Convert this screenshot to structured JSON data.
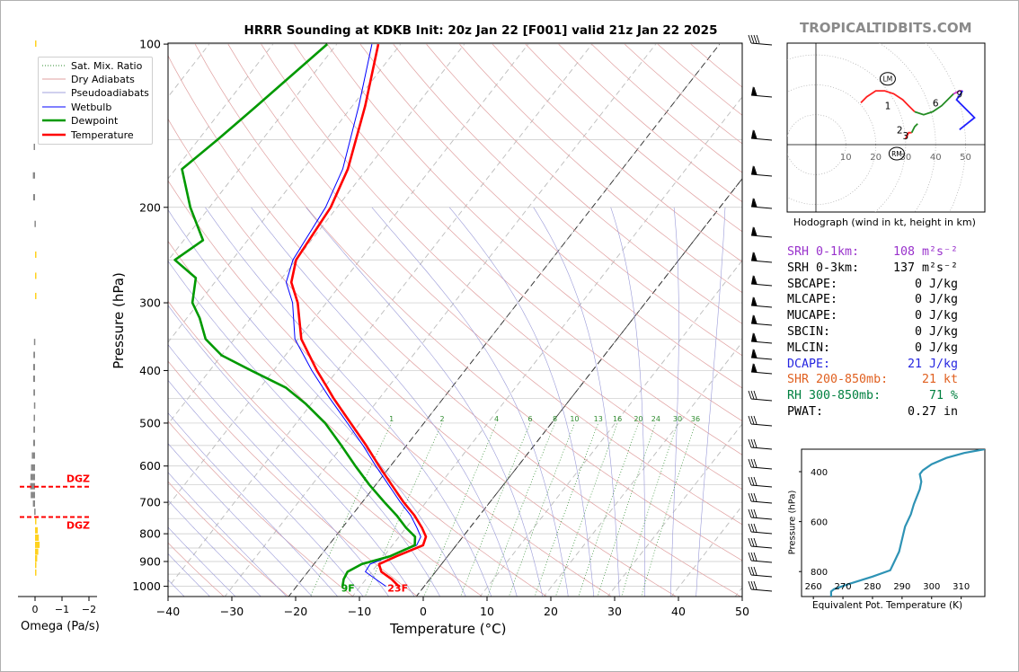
{
  "window": {
    "title": "HRRR Sounding at KDKB Init: 20z Jan 22 [F001] valid 21z Jan 22 2025",
    "brand": "TROPICALTIDBITS.COM"
  },
  "legend": {
    "items": [
      {
        "label": "Sat. Mix. Ratio",
        "color": "#2e8b2e",
        "style": "dotted"
      },
      {
        "label": "Dry Adiabats",
        "color": "#d98080",
        "style": "solid"
      },
      {
        "label": "Pseudoadiabats",
        "color": "#8080d0",
        "style": "solid"
      },
      {
        "label": "Wetbulb",
        "color": "#0000ff",
        "style": "solid"
      },
      {
        "label": "Dewpoint",
        "color": "#009900",
        "style": "solid"
      },
      {
        "label": "Temperature",
        "color": "#ff0000",
        "style": "solid"
      }
    ]
  },
  "skewt": {
    "ylabel": "Pressure (hPa)",
    "xlabel": "Temperature (°C)",
    "pressure_ticks": [
      "100",
      "200",
      "300",
      "400",
      "500",
      "600",
      "700",
      "800",
      "900",
      "1000"
    ],
    "temp_ticks": [
      "−40",
      "−30",
      "−20",
      "−10",
      "0",
      "10",
      "20",
      "30",
      "40",
      "50"
    ],
    "mixing_ratio_labels": [
      "1",
      "2",
      "4",
      "6",
      "8",
      "10",
      "13",
      "16",
      "20",
      "24",
      "30",
      "36"
    ],
    "surface_dewpoint_label": "9F",
    "surface_temp_label": "23F"
  },
  "omega": {
    "xlabel": "Omega (Pa/s)",
    "ticks": [
      "0",
      "−1",
      "−2"
    ],
    "dgz_label": "DGZ"
  },
  "hodograph": {
    "caption": "Hodograph (wind in kt, height in km)",
    "ring_labels": [
      "10",
      "20",
      "30",
      "40",
      "50"
    ],
    "lm_label": "LM",
    "rm_label": "RM",
    "height_labels": [
      "1",
      "2",
      "3",
      "6",
      "9"
    ]
  },
  "params": {
    "rows": [
      {
        "label": "SRH 0-1km:",
        "value": "108 m²s⁻²",
        "color": "#9932cc"
      },
      {
        "label": "SRH 0-3km:",
        "value": "137 m²s⁻²",
        "color": "#000000"
      },
      {
        "label": "SBCAPE:",
        "value": "0 J/kg",
        "color": "#000000"
      },
      {
        "label": "MLCAPE:",
        "value": "0 J/kg",
        "color": "#000000"
      },
      {
        "label": "MUCAPE:",
        "value": "0 J/kg",
        "color": "#000000"
      },
      {
        "label": "SBCIN:",
        "value": "0 J/kg",
        "color": "#000000"
      },
      {
        "label": "MLCIN:",
        "value": "0 J/kg",
        "color": "#000000"
      },
      {
        "label": "DCAPE:",
        "value": "21 J/kg",
        "color": "#2626e0"
      },
      {
        "label": "SHR 200-850mb:",
        "value": "21 kt",
        "color": "#e06020"
      },
      {
        "label": "RH 300-850mb:",
        "value": "71 %",
        "color": "#008040"
      },
      {
        "label": "PWAT:",
        "value": "0.27 in",
        "color": "#000000"
      }
    ]
  },
  "theta_e": {
    "xlabel": "Equivalent Pot. Temperature (K)",
    "ylabel": "Pressure (hPa)",
    "xticks": [
      "260",
      "270",
      "280",
      "290",
      "300",
      "310"
    ],
    "yticks": [
      "400",
      "600",
      "800"
    ]
  },
  "chart_data": [
    {
      "type": "line",
      "title": "HRRR Sounding at KDKB Init: 20z Jan 22 [F001] valid 21z Jan 22 2025",
      "xlabel": "Temperature (°C)",
      "ylabel": "Pressure (hPa)",
      "xlim": [
        -40,
        50
      ],
      "ylim": [
        1050,
        100
      ],
      "yscale": "log",
      "skew": true,
      "series": [
        {
          "name": "Temperature",
          "color": "#ff0000",
          "points": [
            [
              1000,
              -4.0
            ],
            [
              970,
              -6.0
            ],
            [
              940,
              -8.5
            ],
            [
              910,
              -9.8
            ],
            [
              880,
              -8.0
            ],
            [
              840,
              -5.2
            ],
            [
              810,
              -5.8
            ],
            [
              780,
              -7.5
            ],
            [
              740,
              -10.2
            ],
            [
              700,
              -13.5
            ],
            [
              650,
              -17.5
            ],
            [
              600,
              -21.8
            ],
            [
              550,
              -26.3
            ],
            [
              500,
              -31.5
            ],
            [
              450,
              -37.2
            ],
            [
              430,
              -39.5
            ],
            [
              400,
              -43.2
            ],
            [
              350,
              -49.5
            ],
            [
              300,
              -54.5
            ],
            [
              275,
              -58.0
            ],
            [
              250,
              -60.0
            ],
            [
              200,
              -61.0
            ],
            [
              170,
              -63.0
            ],
            [
              130,
              -68.0
            ],
            [
              100,
              -73.5
            ]
          ]
        },
        {
          "name": "Wetbulb",
          "color": "#0000ff",
          "points": [
            [
              1000,
              -6.0
            ],
            [
              970,
              -8.5
            ],
            [
              940,
              -11.0
            ],
            [
              910,
              -11.2
            ],
            [
              880,
              -9.0
            ],
            [
              840,
              -6.2
            ],
            [
              810,
              -6.6
            ],
            [
              780,
              -8.3
            ],
            [
              740,
              -10.8
            ],
            [
              700,
              -14.0
            ],
            [
              650,
              -18.0
            ],
            [
              600,
              -22.3
            ],
            [
              550,
              -26.8
            ],
            [
              500,
              -32.0
            ],
            [
              450,
              -37.8
            ],
            [
              400,
              -44.0
            ],
            [
              350,
              -50.5
            ],
            [
              300,
              -55.3
            ],
            [
              275,
              -58.8
            ],
            [
              250,
              -60.5
            ],
            [
              200,
              -61.8
            ],
            [
              170,
              -63.8
            ],
            [
              130,
              -69.0
            ],
            [
              100,
              -74.5
            ]
          ]
        },
        {
          "name": "Dewpoint",
          "color": "#009900",
          "points": [
            [
              1000,
              -12.8
            ],
            [
              970,
              -13.5
            ],
            [
              940,
              -13.8
            ],
            [
              910,
              -12.5
            ],
            [
              880,
              -9.0
            ],
            [
              840,
              -6.5
            ],
            [
              810,
              -7.5
            ],
            [
              780,
              -10.0
            ],
            [
              740,
              -13.0
            ],
            [
              700,
              -16.5
            ],
            [
              650,
              -21.0
            ],
            [
              600,
              -25.5
            ],
            [
              550,
              -30.2
            ],
            [
              500,
              -35.5
            ],
            [
              460,
              -41.0
            ],
            [
              430,
              -46.0
            ],
            [
              400,
              -53.5
            ],
            [
              375,
              -60.0
            ],
            [
              350,
              -64.5
            ],
            [
              320,
              -68.0
            ],
            [
              300,
              -71.0
            ],
            [
              270,
              -73.5
            ],
            [
              250,
              -79.0
            ],
            [
              230,
              -77.0
            ],
            [
              200,
              -83.0
            ],
            [
              170,
              -89.0
            ],
            [
              150,
              -87.0
            ],
            [
              130,
              -85.0
            ],
            [
              100,
              -81.5
            ]
          ]
        }
      ],
      "surface_temperature_F": 23,
      "surface_dewpoint_F": 9,
      "mixing_ratio_lines_gkg": [
        1,
        2,
        4,
        6,
        8,
        10,
        13,
        16,
        20,
        24,
        30,
        36
      ],
      "grid": true,
      "legend": "top-left"
    },
    {
      "type": "bar",
      "xlabel": "Omega (Pa/s)",
      "xlim": [
        0.3,
        -2.3
      ],
      "orientation": "horizontal",
      "dgz_pressure_hpa": [
        655,
        745
      ],
      "bars": [
        {
          "p": 100,
          "omega": -0.02,
          "color": "#ffd21f"
        },
        {
          "p": 155,
          "omega": 0.05,
          "color": "#888888"
        },
        {
          "p": 175,
          "omega": 0.08,
          "color": "#888888"
        },
        {
          "p": 192,
          "omega": 0.07,
          "color": "#888888"
        },
        {
          "p": 215,
          "omega": 0.02,
          "color": "#888888"
        },
        {
          "p": 245,
          "omega": -0.03,
          "color": "#ffd21f"
        },
        {
          "p": 268,
          "omega": -0.05,
          "color": "#ffd21f"
        },
        {
          "p": 292,
          "omega": -0.03,
          "color": "#ffd21f"
        },
        {
          "p": 355,
          "omega": 0.04,
          "color": "#888888"
        },
        {
          "p": 375,
          "omega": 0.06,
          "color": "#888888"
        },
        {
          "p": 395,
          "omega": 0.07,
          "color": "#888888"
        },
        {
          "p": 415,
          "omega": 0.07,
          "color": "#888888"
        },
        {
          "p": 440,
          "omega": 0.06,
          "color": "#888888"
        },
        {
          "p": 465,
          "omega": 0.04,
          "color": "#888888"
        },
        {
          "p": 490,
          "omega": 0.05,
          "color": "#888888"
        },
        {
          "p": 515,
          "omega": 0.06,
          "color": "#888888"
        },
        {
          "p": 545,
          "omega": 0.07,
          "color": "#888888"
        },
        {
          "p": 575,
          "omega": 0.12,
          "color": "#888888"
        },
        {
          "p": 605,
          "omega": 0.15,
          "color": "#888888"
        },
        {
          "p": 630,
          "omega": 0.17,
          "color": "#888888"
        },
        {
          "p": 655,
          "omega": 0.18,
          "color": "#888888"
        },
        {
          "p": 680,
          "omega": 0.16,
          "color": "#888888"
        },
        {
          "p": 705,
          "omega": 0.08,
          "color": "#888888"
        },
        {
          "p": 730,
          "omega": 0.03,
          "color": "#888888"
        },
        {
          "p": 760,
          "omega": -0.05,
          "color": "#ffd21f"
        },
        {
          "p": 790,
          "omega": -0.1,
          "color": "#ffd21f"
        },
        {
          "p": 815,
          "omega": -0.14,
          "color": "#ffd21f"
        },
        {
          "p": 840,
          "omega": -0.17,
          "color": "#ffd21f"
        },
        {
          "p": 865,
          "omega": -0.12,
          "color": "#ffd21f"
        },
        {
          "p": 890,
          "omega": -0.08,
          "color": "#ffd21f"
        },
        {
          "p": 915,
          "omega": -0.04,
          "color": "#ffd21f"
        },
        {
          "p": 945,
          "omega": -0.02,
          "color": "#ffd21f"
        }
      ]
    },
    {
      "type": "line",
      "title": "Hodograph (wind in kt, height in km)",
      "rings_kt": [
        10,
        20,
        30,
        40,
        50
      ],
      "segments": [
        {
          "color": "#ff2020",
          "points": [
            [
              15,
              14
            ],
            [
              17,
              16
            ],
            [
              20,
              18
            ],
            [
              23,
              18
            ],
            [
              26,
              17
            ],
            [
              29,
              15
            ],
            [
              31,
              13
            ],
            [
              33,
              11
            ]
          ]
        },
        {
          "color": "#228b22",
          "points": [
            [
              33,
              11
            ],
            [
              36,
              10
            ],
            [
              39,
              11
            ],
            [
              42,
              13
            ],
            [
              46,
              17
            ]
          ]
        },
        {
          "color": "#cc33cc",
          "points": [
            [
              46,
              17
            ],
            [
              48,
              18
            ],
            [
              49,
              18
            ]
          ]
        },
        {
          "color": "#2020ff",
          "points": [
            [
              49,
              18
            ],
            [
              47,
              15
            ],
            [
              53,
              9
            ],
            [
              48,
              5
            ]
          ]
        },
        {
          "color": "#ff2020",
          "points": [
            [
              30,
              2
            ],
            [
              31,
              4
            ],
            [
              32,
              4
            ]
          ]
        },
        {
          "color": "#228b22",
          "points": [
            [
              32,
              4
            ],
            [
              33,
              6
            ],
            [
              34,
              7
            ]
          ]
        }
      ],
      "lm_kt": [
        24,
        22
      ],
      "rm_kt": [
        27,
        -3
      ],
      "height_marks": [
        {
          "label": "1",
          "kt": [
            24,
            13
          ]
        },
        {
          "label": "2",
          "kt": [
            28,
            5
          ]
        },
        {
          "label": "3",
          "kt": [
            30,
            3
          ]
        },
        {
          "label": "6",
          "kt": [
            40,
            14
          ]
        },
        {
          "label": "9",
          "kt": [
            48,
            17
          ]
        }
      ]
    },
    {
      "type": "line",
      "xlabel": "Equivalent Pot. Temperature (K)",
      "ylabel": "Pressure (hPa)",
      "xlim": [
        256,
        318
      ],
      "ylim": [
        900,
        310
      ],
      "series": [
        {
          "name": "Theta-e",
          "color": "#2e93b5",
          "points": [
            [
              318,
              310
            ],
            [
              311,
              325
            ],
            [
              305,
              345
            ],
            [
              300,
              370
            ],
            [
              297,
              395
            ],
            [
              296,
              410
            ],
            [
              296.5,
              440
            ],
            [
              296,
              470
            ],
            [
              294,
              530
            ],
            [
              293,
              570
            ],
            [
              291,
              620
            ],
            [
              290,
              670
            ],
            [
              289,
              720
            ],
            [
              287,
              770
            ],
            [
              286,
              795
            ],
            [
              280,
              820
            ],
            [
              272,
              850
            ],
            [
              267,
              870
            ],
            [
              266,
              880
            ],
            [
              266,
              900
            ]
          ]
        }
      ]
    }
  ]
}
